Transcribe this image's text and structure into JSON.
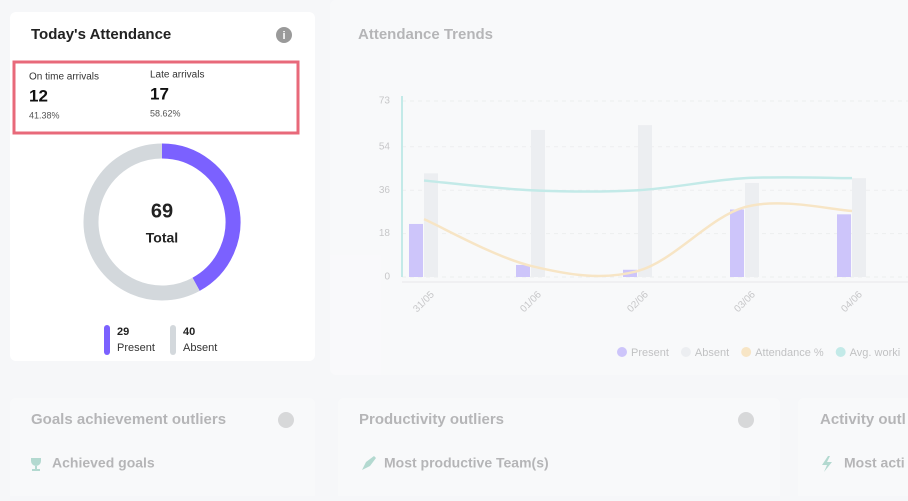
{
  "attendance_card": {
    "title": "Today's Attendance",
    "stats": [
      {
        "label": "On time arrivals",
        "value": "12",
        "percent": "41.38%"
      },
      {
        "label": "Late arrivals",
        "value": "17",
        "percent": "58.62%"
      }
    ]
  },
  "chart_data": [
    {
      "type": "donut",
      "categories": [
        "Present",
        "Absent"
      ],
      "values": [
        29,
        40
      ],
      "colors": [
        "#7b61ff",
        "#d3d8dc"
      ],
      "center_value": 69,
      "center_label": "Total"
    },
    {
      "type": "bar-line",
      "title": "Attendance Trends",
      "categories": [
        "31/05",
        "01/06",
        "02/06",
        "03/06",
        "04/06"
      ],
      "ylim": [
        0,
        73
      ],
      "yticks": [
        0,
        18,
        36,
        54,
        73
      ],
      "grid": true,
      "series": [
        {
          "name": "Present",
          "kind": "bar",
          "color": "#7b61ff",
          "values": [
            22,
            5,
            3,
            28,
            26
          ]
        },
        {
          "name": "Absent",
          "kind": "bar",
          "color": "#d9dde1",
          "values": [
            43,
            61,
            63,
            39,
            41
          ]
        },
        {
          "name": "Attendance %",
          "kind": "line",
          "color": "#fbc15e",
          "values": [
            24,
            4.6,
            2.5,
            29,
            27.4
          ]
        },
        {
          "name": "Avg. worki",
          "kind": "line",
          "color": "#5fd0c8",
          "values": [
            40,
            36,
            36,
            41,
            41
          ]
        }
      ]
    }
  ],
  "outlier_cards": [
    {
      "title": "Goals achievement outliers",
      "item": "Achieved goals"
    },
    {
      "title": "Productivity outliers",
      "item": "Most productive Team(s)"
    },
    {
      "title": "Activity outl",
      "item": "Most acti"
    }
  ]
}
